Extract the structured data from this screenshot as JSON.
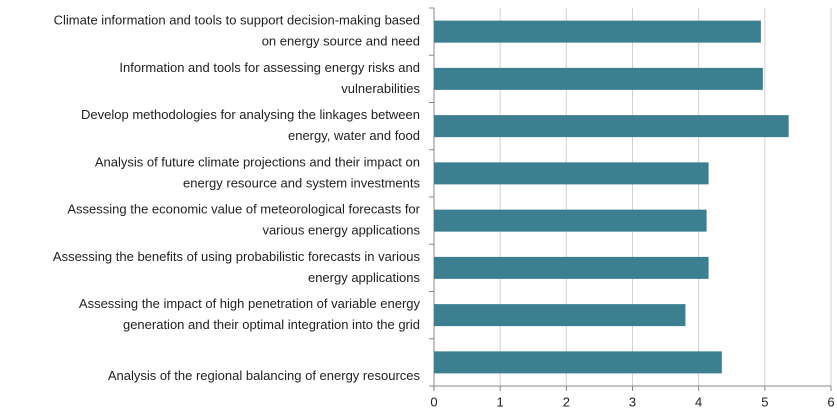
{
  "chart_data": {
    "type": "hbar",
    "categories": [
      [
        "Climate information and tools to support decision-making based",
        "on energy source and need"
      ],
      [
        "Information and tools for assessing energy risks and",
        "vulnerabilities"
      ],
      [
        "Develop methodologies for analysing the linkages between",
        "energy, water and food"
      ],
      [
        "Analysis of future climate projections and their impact on",
        "energy resource and system investments"
      ],
      [
        "Assessing the economic value of meteorological forecasts for",
        "various energy applications"
      ],
      [
        "Assessing the benefits of using probabilistic forecasts in various",
        "energy applications"
      ],
      [
        "Assessing the impact of high penetration of variable energy",
        "generation and their optimal integration into the grid"
      ],
      [
        "Analysis of the regional balancing of energy resources"
      ]
    ],
    "values": [
      4.94,
      4.97,
      5.36,
      4.15,
      4.12,
      4.15,
      3.8,
      4.35
    ],
    "color": "#3b7f90",
    "xlim": [
      0,
      6
    ],
    "xticks": [
      0,
      1,
      2,
      3,
      4,
      5,
      6
    ],
    "grid": true
  }
}
